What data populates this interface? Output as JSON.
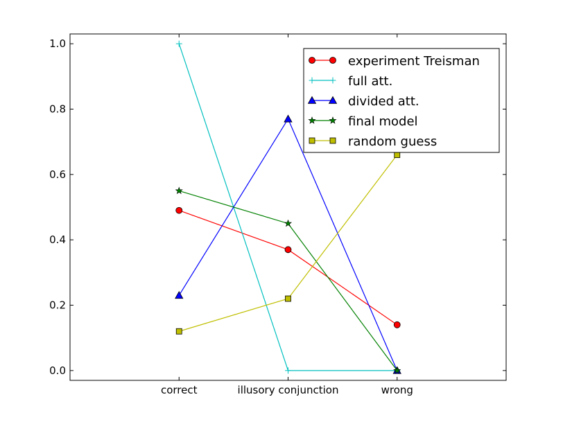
{
  "chart_data": {
    "type": "line",
    "title": "",
    "xlabel": "",
    "ylabel": "",
    "categories": [
      "correct",
      "illusory conjunction",
      "wrong"
    ],
    "ylim": [
      -0.03,
      1.03
    ],
    "y_ticks": [
      "0.0",
      "0.2",
      "0.4",
      "0.6",
      "0.8",
      "1.0"
    ],
    "grid": false,
    "legend_position": "top-right",
    "series": [
      {
        "name": "experiment Treisman",
        "values": [
          0.49,
          0.37,
          0.14
        ],
        "color": "#ff0000",
        "marker": "circle",
        "marker_fill": "#ff0000"
      },
      {
        "name": "full att.",
        "values": [
          1.0,
          0.0,
          0.0
        ],
        "color": "#00bfbf",
        "marker": "plus",
        "marker_fill": "#00bfbf"
      },
      {
        "name": "divided att.",
        "values": [
          0.23,
          0.77,
          0.0
        ],
        "color": "#0000ff",
        "marker": "triangle",
        "marker_fill": "#0000ff"
      },
      {
        "name": "final model",
        "values": [
          0.55,
          0.45,
          0.0
        ],
        "color": "#008000",
        "marker": "star",
        "marker_fill": "#008000"
      },
      {
        "name": "random guess",
        "values": [
          0.12,
          0.22,
          0.66
        ],
        "color": "#bfbf00",
        "marker": "square",
        "marker_fill": "#bfbf00"
      }
    ]
  }
}
